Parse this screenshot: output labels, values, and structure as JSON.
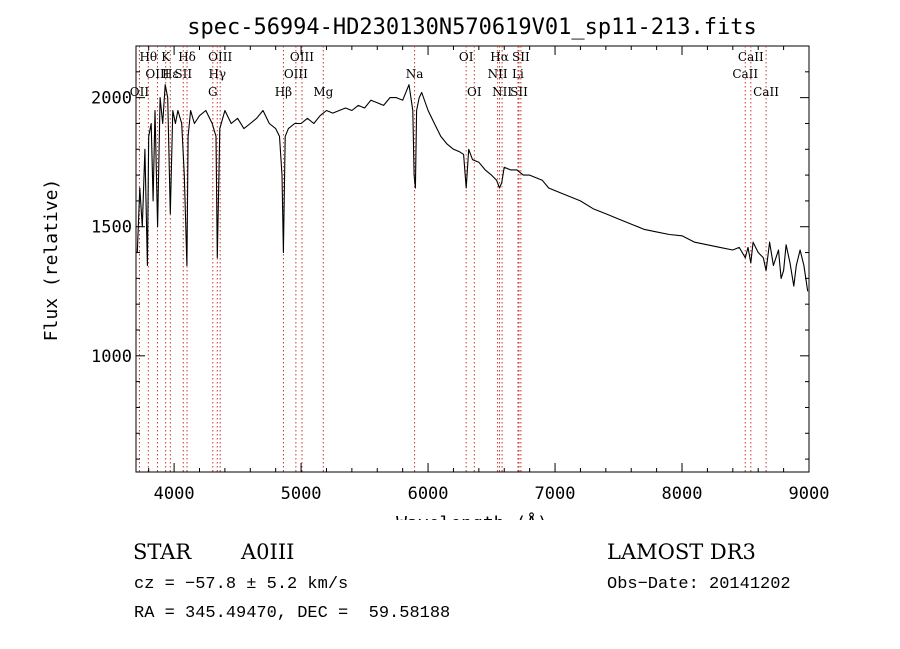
{
  "chart_data": {
    "type": "line",
    "title": "spec-56994-HD230130N570619V01_sp11-213.fits",
    "xlabel": "Wavelength (Å)",
    "ylabel": "Flux (relative)",
    "xlim": [
      3700,
      9000
    ],
    "ylim": [
      550,
      2200
    ],
    "xticks": [
      4000,
      5000,
      6000,
      7000,
      8000,
      9000
    ],
    "yticks": [
      1000,
      1500,
      2000
    ],
    "line_color": "#000000",
    "marker_color": "#c0392b",
    "series": [
      {
        "name": "flux",
        "x": [
          3710,
          3730,
          3750,
          3770,
          3790,
          3800,
          3820,
          3835,
          3850,
          3870,
          3890,
          3910,
          3930,
          3950,
          3970,
          3990,
          4010,
          4030,
          4060,
          4080,
          4101,
          4110,
          4130,
          4160,
          4200,
          4250,
          4300,
          4330,
          4340,
          4360,
          4400,
          4450,
          4500,
          4550,
          4600,
          4650,
          4700,
          4750,
          4800,
          4830,
          4850,
          4861,
          4875,
          4900,
          4950,
          5000,
          5050,
          5100,
          5150,
          5200,
          5250,
          5300,
          5350,
          5400,
          5450,
          5500,
          5550,
          5600,
          5650,
          5700,
          5750,
          5800,
          5850,
          5880,
          5890,
          5900,
          5910,
          5930,
          5950,
          6000,
          6050,
          6100,
          6150,
          6200,
          6250,
          6280,
          6300,
          6320,
          6350,
          6400,
          6450,
          6500,
          6540,
          6563,
          6580,
          6600,
          6650,
          6700,
          6750,
          6800,
          6850,
          6900,
          6950,
          7000,
          7100,
          7200,
          7300,
          7400,
          7500,
          7600,
          7700,
          7800,
          7900,
          8000,
          8100,
          8200,
          8300,
          8400,
          8450,
          8498,
          8520,
          8542,
          8560,
          8600,
          8640,
          8662,
          8690,
          8720,
          8760,
          8780,
          8800,
          8820,
          8850,
          8880,
          8900,
          8930,
          8960,
          8990
        ],
        "values": [
          1400,
          1650,
          1500,
          1800,
          1350,
          1850,
          1900,
          1600,
          1950,
          1500,
          2000,
          1900,
          2050,
          2000,
          1550,
          1950,
          1900,
          1950,
          1900,
          1700,
          1350,
          1850,
          1950,
          1900,
          1930,
          1950,
          1900,
          1850,
          1380,
          1880,
          1950,
          1900,
          1920,
          1880,
          1900,
          1920,
          1950,
          1900,
          1880,
          1850,
          1700,
          1400,
          1850,
          1880,
          1900,
          1900,
          1920,
          1900,
          1930,
          1950,
          1940,
          1950,
          1960,
          1950,
          1970,
          1960,
          1990,
          1980,
          1970,
          2000,
          2000,
          1990,
          2050,
          1950,
          1700,
          1650,
          1950,
          2000,
          2020,
          1950,
          1900,
          1850,
          1820,
          1800,
          1790,
          1780,
          1650,
          1800,
          1760,
          1750,
          1720,
          1700,
          1680,
          1650,
          1670,
          1730,
          1720,
          1720,
          1700,
          1700,
          1690,
          1680,
          1650,
          1640,
          1620,
          1600,
          1570,
          1550,
          1530,
          1510,
          1490,
          1480,
          1470,
          1465,
          1440,
          1430,
          1420,
          1410,
          1420,
          1380,
          1420,
          1360,
          1440,
          1400,
          1380,
          1330,
          1440,
          1350,
          1410,
          1300,
          1330,
          1430,
          1360,
          1270,
          1350,
          1410,
          1350,
          1250
        ]
      }
    ],
    "markers": [
      {
        "label": "OII",
        "wavelength": 3727,
        "row": 2
      },
      {
        "label": "Hθ",
        "wavelength": 3797,
        "row": 0
      },
      {
        "label": "OIII",
        "wavelength": 3869,
        "row": 1
      },
      {
        "label": "K",
        "wavelength": 3934,
        "row": 0
      },
      {
        "label": "Hε",
        "wavelength": 3970,
        "row": 1
      },
      {
        "label": "SII",
        "wavelength": 4072,
        "row": 1
      },
      {
        "label": "Hδ",
        "wavelength": 4102,
        "row": 0
      },
      {
        "label": "Hγ",
        "wavelength": 4340,
        "row": 1
      },
      {
        "label": "G",
        "wavelength": 4305,
        "row": 2
      },
      {
        "label": "OIII",
        "wavelength": 4363,
        "row": 0
      },
      {
        "label": "Hβ",
        "wavelength": 4861,
        "row": 2
      },
      {
        "label": "OIII",
        "wavelength": 4959,
        "row": 1
      },
      {
        "label": "OIII",
        "wavelength": 5007,
        "row": 0
      },
      {
        "label": "Mg",
        "wavelength": 5175,
        "row": 2
      },
      {
        "label": "Na",
        "wavelength": 5894,
        "row": 1
      },
      {
        "label": "OI",
        "wavelength": 6300,
        "row": 0
      },
      {
        "label": "OI",
        "wavelength": 6364,
        "row": 2
      },
      {
        "label": "NII",
        "wavelength": 6548,
        "row": 1
      },
      {
        "label": "Hα",
        "wavelength": 6563,
        "row": 0
      },
      {
        "label": "NII",
        "wavelength": 6583,
        "row": 2
      },
      {
        "label": "Li",
        "wavelength": 6708,
        "row": 1
      },
      {
        "label": "SII",
        "wavelength": 6716,
        "row": 2
      },
      {
        "label": "SII",
        "wavelength": 6731,
        "row": 0
      },
      {
        "label": "CaII",
        "wavelength": 8498,
        "row": 1
      },
      {
        "label": "CaII",
        "wavelength": 8542,
        "row": 0
      },
      {
        "label": "CaII",
        "wavelength": 8662,
        "row": 2
      }
    ]
  },
  "info": {
    "class": "STAR",
    "subclass": "A0III",
    "survey": "LAMOST DR3",
    "cz": "cz = −57.8 ± 5.2 km/s",
    "obs_date": "Obs−Date: 20141202",
    "radec": "RA = 345.49470, DEC =  59.58188"
  }
}
